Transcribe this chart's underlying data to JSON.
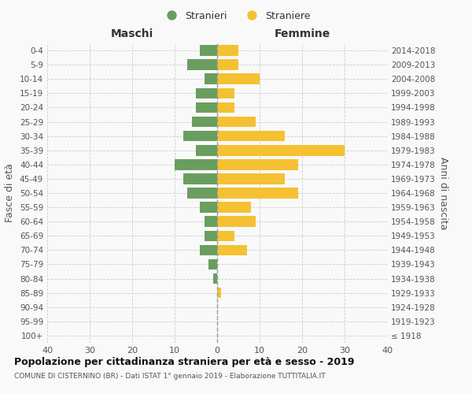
{
  "age_groups": [
    "100+",
    "95-99",
    "90-94",
    "85-89",
    "80-84",
    "75-79",
    "70-74",
    "65-69",
    "60-64",
    "55-59",
    "50-54",
    "45-49",
    "40-44",
    "35-39",
    "30-34",
    "25-29",
    "20-24",
    "15-19",
    "10-14",
    "5-9",
    "0-4"
  ],
  "birth_years": [
    "≤ 1918",
    "1919-1923",
    "1924-1928",
    "1929-1933",
    "1934-1938",
    "1939-1943",
    "1944-1948",
    "1949-1953",
    "1954-1958",
    "1959-1963",
    "1964-1968",
    "1969-1973",
    "1974-1978",
    "1979-1983",
    "1984-1988",
    "1989-1993",
    "1994-1998",
    "1999-2003",
    "2004-2008",
    "2009-2013",
    "2014-2018"
  ],
  "males": [
    0,
    0,
    0,
    0,
    1,
    2,
    4,
    3,
    3,
    4,
    7,
    8,
    10,
    5,
    8,
    6,
    5,
    5,
    3,
    7,
    4
  ],
  "females": [
    0,
    0,
    0,
    1,
    0,
    0,
    7,
    4,
    9,
    8,
    19,
    16,
    19,
    30,
    16,
    9,
    4,
    4,
    10,
    5,
    5
  ],
  "male_color": "#6a9e5f",
  "female_color": "#f5c132",
  "background_color": "#f9f9f9",
  "grid_color": "#cccccc",
  "title": "Popolazione per cittadinanza straniera per età e sesso - 2019",
  "subtitle": "COMUNE DI CISTERNINO (BR) - Dati ISTAT 1° gennaio 2019 - Elaborazione TUTTITALIA.IT",
  "ylabel_left": "Fasce di età",
  "ylabel_right": "Anni di nascita",
  "xlabel_left": "Maschi",
  "xlabel_right": "Femmine",
  "legend_males": "Stranieri",
  "legend_females": "Straniere",
  "xlim": 40,
  "bar_height": 0.75
}
